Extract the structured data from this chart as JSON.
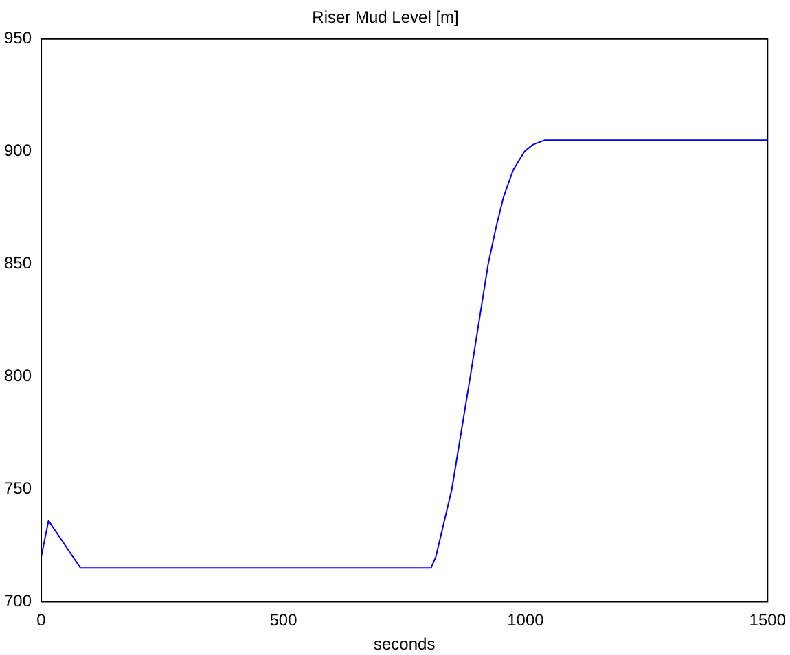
{
  "chart_data": {
    "type": "line",
    "title": "Riser Mud Level [m]",
    "xlabel": "seconds",
    "x": [
      0,
      15,
      81,
      805,
      815,
      848,
      886,
      923,
      940,
      955,
      975,
      998,
      1015,
      1039,
      1500
    ],
    "series": [
      {
        "color": "#0000ff",
        "values": [
          720,
          736,
          715,
          715,
          720,
          750,
          800,
          850,
          867,
          880,
          892,
          900,
          903,
          905,
          905
        ]
      }
    ],
    "xlim": [
      0,
      1500
    ],
    "xticks": [
      0,
      500,
      1000,
      1500
    ],
    "ylim": [
      700,
      950
    ],
    "yticks": [
      700,
      750,
      800,
      850,
      900,
      950
    ],
    "grid": false,
    "legend": false,
    "marker": "none",
    "line_style": "solid"
  }
}
